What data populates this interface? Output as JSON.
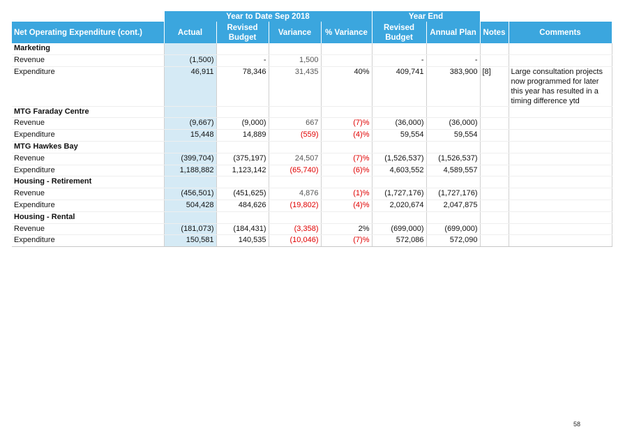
{
  "table": {
    "group_headers": [
      "Year to Date Sep 2018",
      "Year End"
    ],
    "columns": [
      "Net Operating Expenditure (cont.)",
      "Actual",
      "Revised Budget",
      "Variance",
      "% Variance",
      "Revised Budget",
      "Annual Plan",
      "Notes",
      "Comments"
    ],
    "rows": [
      [
        "Marketing"
      ],
      [
        "Revenue",
        "(1,500)",
        "-",
        "1,500",
        null,
        "-",
        "-",
        null,
        null
      ],
      [
        "Expenditure",
        "46,911",
        "78,346",
        "31,435",
        "40%",
        "409,741",
        "383,900",
        "[8]",
        "Large consultation projects now programmed for later this year has resulted in a timing difference ytd"
      ],
      [
        "MTG Faraday Centre"
      ],
      [
        "Revenue",
        "(9,667)",
        "(9,000)",
        "667",
        "(7)%",
        "(36,000)",
        "(36,000)",
        null,
        null
      ],
      [
        "Expenditure",
        "15,448",
        "14,889",
        "(559)",
        "(4)%",
        "59,554",
        "59,554",
        null,
        null
      ],
      [
        "MTG Hawkes Bay"
      ],
      [
        "Revenue",
        "(399,704)",
        "(375,197)",
        "24,507",
        "(7)%",
        "(1,526,537)",
        "(1,526,537)",
        null,
        null
      ],
      [
        "Expenditure",
        "1,188,882",
        "1,123,142",
        "(65,740)",
        "(6)%",
        "4,603,552",
        "4,589,557",
        null,
        null
      ],
      [
        "Housing - Retirement"
      ],
      [
        "Revenue",
        "(456,501)",
        "(451,625)",
        "4,876",
        "(1)%",
        "(1,727,176)",
        "(1,727,176)",
        null,
        null
      ],
      [
        "Expenditure",
        "504,428",
        "484,626",
        "(19,802)",
        "(4)%",
        "2,020,674",
        "2,047,875",
        null,
        null
      ],
      [
        "Housing - Rental"
      ],
      [
        "Revenue",
        "(181,073)",
        "(184,431)",
        "(3,358)",
        "2%",
        "(699,000)",
        "(699,000)",
        null,
        null
      ],
      [
        "Expenditure",
        "150,581",
        "140,535",
        "(10,046)",
        "(7)%",
        "572,086",
        "572,090",
        null,
        null
      ]
    ]
  },
  "footer": {
    "page_number": "58"
  }
}
